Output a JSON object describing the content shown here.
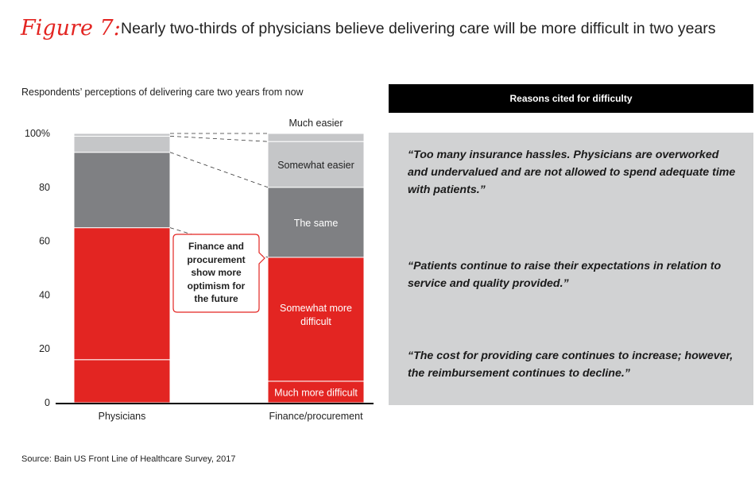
{
  "figure": {
    "label": "Figure 7:",
    "title": "Nearly two-thirds of physicians believe delivering care will be more difficult in two years"
  },
  "callout": "Finance and\nprocurement\nshow more\noptimism for\nthe future",
  "reasons": {
    "header": "Reasons cited for difficulty",
    "quotes": [
      "“Too many insurance hassles. Physicians are overworked and undervalued and are not allowed to spend adequate time with patients.”",
      "“Patients continue to raise their expectations in relation to service and quality provided.”",
      "“The cost for providing care continues to increase; however, the reimbursement continues to decline.”"
    ]
  },
  "source": "Source: Bain US Front Line of Healthcare Survey, 2017",
  "chart_data": {
    "type": "bar",
    "stacked": true,
    "title": "Respondents’ perceptions of delivering care two years from now",
    "categories": [
      "Physicians",
      "Finance/procurement"
    ],
    "ylim": [
      0,
      100
    ],
    "yticks": [
      "0",
      "20",
      "40",
      "60",
      "80",
      "100%"
    ],
    "series": [
      {
        "name": "Much more difficult",
        "values": [
          16,
          8
        ],
        "color": "#e32522"
      },
      {
        "name": "Somewhat more difficult",
        "values": [
          49,
          46
        ],
        "color": "#e32522"
      },
      {
        "name": "The same",
        "values": [
          28,
          26
        ],
        "color": "#7f8083"
      },
      {
        "name": "Somewhat easier",
        "values": [
          6,
          17
        ],
        "color": "#c5c6c8"
      },
      {
        "name": "Much easier",
        "values": [
          1,
          3
        ],
        "color": "#c5c6c8"
      }
    ]
  }
}
